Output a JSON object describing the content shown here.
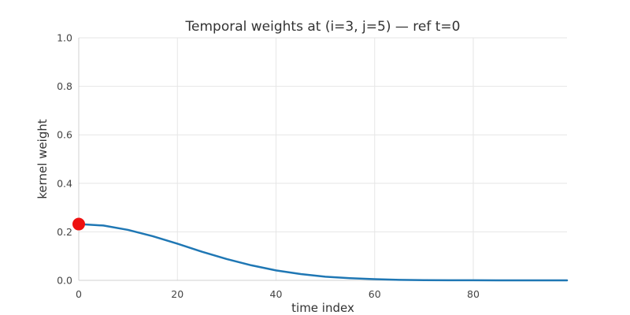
{
  "chart_data": {
    "type": "line",
    "title": "Temporal weights at (i=3, j=5) — ref t=0",
    "xlabel": "time index",
    "ylabel": "kernel weight",
    "xlim": [
      0,
      99
    ],
    "ylim": [
      0.0,
      1.0
    ],
    "x_ticks": [
      0,
      20,
      40,
      60,
      80
    ],
    "y_ticks": [
      0.0,
      0.2,
      0.4,
      0.6,
      0.8,
      1.0
    ],
    "y_tick_labels": [
      "0.0",
      "0.2",
      "0.4",
      "0.6",
      "0.8",
      "1.0"
    ],
    "grid": true,
    "series": [
      {
        "color": "#1f77b4",
        "x": [
          0,
          5,
          10,
          15,
          20,
          25,
          30,
          35,
          40,
          45,
          50,
          55,
          60,
          65,
          70,
          75,
          80,
          85,
          90,
          95,
          99
        ],
        "y": [
          0.232,
          0.226,
          0.208,
          0.182,
          0.151,
          0.118,
          0.088,
          0.062,
          0.041,
          0.026,
          0.015,
          0.009,
          0.005,
          0.002,
          0.001,
          0.0006,
          0.0003,
          0.0001,
          0.0,
          0.0,
          0.0
        ]
      }
    ],
    "reference_point": {
      "x": 0,
      "y": 0.232,
      "color": "#ee1111"
    }
  }
}
